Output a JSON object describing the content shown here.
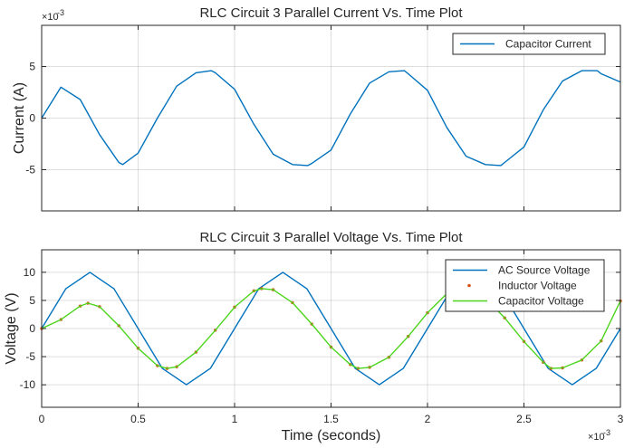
{
  "chart_data": [
    {
      "type": "line",
      "title": "RLC Circuit 3 Parallel Current Vs. Time Plot",
      "xlabel": "",
      "ylabel": "Current (A)",
      "y_exponent_label": "×10",
      "y_exponent_power": "-3",
      "xlim": [
        0,
        0.003
      ],
      "ylim": [
        -0.009,
        0.009
      ],
      "yticks": [
        -0.005,
        0,
        0.005
      ],
      "ytick_labels": [
        "-5",
        "0",
        "5"
      ],
      "xticks": [
        0,
        0.0005,
        0.001,
        0.0015,
        0.002,
        0.0025,
        0.003
      ],
      "grid": true,
      "legend_position": "top-right",
      "series": [
        {
          "name": "Capacitor Current",
          "color": "#0072BD",
          "style": "line",
          "x": [
            0,
            0.0001,
            0.0002,
            0.0003,
            0.0004,
            0.00042,
            0.0005,
            0.0006,
            0.0007,
            0.0008,
            0.00088,
            0.0009,
            0.001,
            0.0011,
            0.0012,
            0.0013,
            0.00138,
            0.0014,
            0.0015,
            0.0016,
            0.0017,
            0.0018,
            0.00188,
            0.0019,
            0.002,
            0.0021,
            0.0022,
            0.0023,
            0.00238,
            0.0024,
            0.0025,
            0.0026,
            0.0027,
            0.0028,
            0.00288,
            0.0029,
            0.003
          ],
          "values": [
            0,
            0.003,
            0.0018,
            -0.0016,
            -0.0043,
            -0.0045,
            -0.0034,
            0,
            0.0031,
            0.0044,
            0.0046,
            0.0044,
            0.0028,
            -0.0006,
            -0.0035,
            -0.0045,
            -0.0046,
            -0.0044,
            -0.0031,
            0.0004,
            0.0034,
            0.0045,
            0.0046,
            0.0043,
            0.0027,
            -0.0009,
            -0.0037,
            -0.0045,
            -0.0046,
            -0.0043,
            -0.0028,
            0.0008,
            0.0036,
            0.0046,
            0.0046,
            0.0043,
            0.0035
          ]
        }
      ]
    },
    {
      "type": "line",
      "title": "RLC Circuit 3 Parallel Voltage Vs. Time Plot",
      "xlabel": "Time (seconds)",
      "ylabel": "Voltage (V)",
      "x_exponent_label": "×10",
      "x_exponent_power": "-3",
      "xlim": [
        0,
        0.003
      ],
      "ylim": [
        -14,
        14
      ],
      "yticks": [
        -10,
        -5,
        0,
        5,
        10
      ],
      "ytick_labels": [
        "-10",
        "-5",
        "0",
        "5",
        "10"
      ],
      "xticks": [
        0,
        0.0005,
        0.001,
        0.0015,
        0.002,
        0.0025,
        0.003
      ],
      "xtick_labels": [
        "0",
        "0.5",
        "1",
        "1.5",
        "2",
        "2.5",
        "3"
      ],
      "grid": true,
      "legend_position": "top-right",
      "series": [
        {
          "name": "AC Source Voltage",
          "color": "#0072BD",
          "style": "line",
          "x": [
            0,
            0.000125,
            0.00025,
            0.000375,
            0.0005,
            0.000625,
            0.00075,
            0.000875,
            0.001,
            0.001125,
            0.00125,
            0.001375,
            0.0015,
            0.001625,
            0.00175,
            0.001875,
            0.002,
            0.002125,
            0.00225,
            0.002375,
            0.0025,
            0.002625,
            0.00275,
            0.002875,
            0.003
          ],
          "values": [
            0,
            7.07,
            10,
            7.07,
            0,
            -7.07,
            -10,
            -7.07,
            0,
            7.07,
            10,
            7.07,
            0,
            -7.07,
            -10,
            -7.07,
            0,
            7.07,
            10,
            7.07,
            0,
            -7.07,
            -10,
            -7.07,
            0
          ]
        },
        {
          "name": "Inductor Voltage",
          "color": "#D95319",
          "style": "markers",
          "x": [
            0,
            0.0001,
            0.0002,
            0.00024,
            0.0003,
            0.0004,
            0.0005,
            0.0006,
            0.00065,
            0.0007,
            0.0008,
            0.0009,
            0.001,
            0.0011,
            0.00114,
            0.0012,
            0.0013,
            0.0014,
            0.0015,
            0.0016,
            0.00164,
            0.0017,
            0.0018,
            0.0019,
            0.002,
            0.0021,
            0.00214,
            0.0022,
            0.0023,
            0.0024,
            0.0025,
            0.0026,
            0.00264,
            0.0027,
            0.0028,
            0.0029,
            0.003
          ],
          "values": [
            0,
            1.6,
            4,
            4.5,
            3.9,
            0.5,
            -3.5,
            -6.6,
            -7.1,
            -6.8,
            -4.2,
            -0.3,
            3.8,
            6.7,
            7.1,
            6.9,
            4.6,
            0.8,
            -3.3,
            -6.4,
            -7.1,
            -6.9,
            -5.1,
            -1.4,
            2.8,
            6.2,
            7.1,
            7,
            5.4,
            1.9,
            -2.3,
            -6,
            -7.1,
            -7,
            -5.6,
            -2.2,
            4.9
          ]
        },
        {
          "name": "Capacitor Voltage",
          "color": "#4DD51D",
          "style": "line",
          "x": [
            0,
            0.0001,
            0.0002,
            0.00024,
            0.0003,
            0.0004,
            0.0005,
            0.0006,
            0.00065,
            0.0007,
            0.0008,
            0.0009,
            0.001,
            0.0011,
            0.00114,
            0.0012,
            0.0013,
            0.0014,
            0.0015,
            0.0016,
            0.00164,
            0.0017,
            0.0018,
            0.0019,
            0.002,
            0.0021,
            0.00214,
            0.0022,
            0.0023,
            0.0024,
            0.0025,
            0.0026,
            0.00264,
            0.0027,
            0.0028,
            0.0029,
            0.003
          ],
          "values": [
            0,
            1.6,
            4,
            4.5,
            3.9,
            0.5,
            -3.5,
            -6.6,
            -7.1,
            -6.8,
            -4.2,
            -0.3,
            3.8,
            6.7,
            7.1,
            6.9,
            4.6,
            0.8,
            -3.3,
            -6.4,
            -7.1,
            -6.9,
            -5.1,
            -1.4,
            2.8,
            6.2,
            7.1,
            7,
            5.4,
            1.9,
            -2.3,
            -6,
            -7.1,
            -7,
            -5.6,
            -2.2,
            4.9
          ]
        }
      ]
    }
  ]
}
